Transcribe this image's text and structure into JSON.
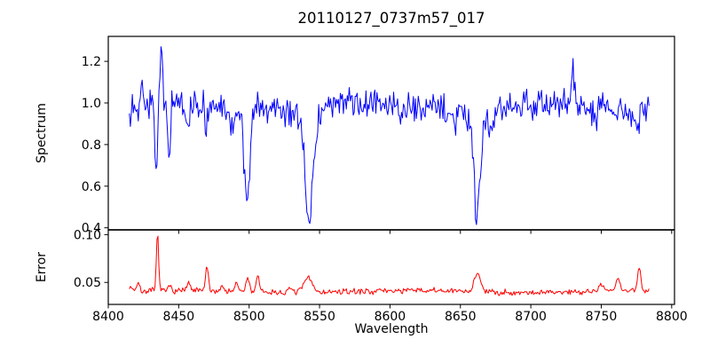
{
  "figure": {
    "background_color": "#ffffff",
    "frame_color": "#000000"
  },
  "chart_data": {
    "type": "line",
    "title": "20110127_0737m57_017",
    "xlabel": "Wavelength",
    "legend": "none",
    "grid": false,
    "xlim": [
      8400,
      8802
    ],
    "x_ticks": [
      8400,
      8450,
      8500,
      8550,
      8600,
      8650,
      8700,
      8750,
      8800
    ],
    "x_tick_labels": [
      "8400",
      "8450",
      "8500",
      "8550",
      "8600",
      "8650",
      "8700",
      "8750",
      "8800"
    ],
    "data_x_range": [
      8415,
      8784
    ],
    "panels": [
      {
        "name": "spectrum",
        "ylabel": "Spectrum",
        "ylim": [
          0.39,
          1.32
        ],
        "y_ticks": [
          1.2,
          1.0,
          0.8,
          0.6,
          0.4
        ],
        "y_tick_labels": [
          "1.2",
          "1.0",
          "0.8",
          "0.6",
          "0.4"
        ],
        "color": "#0000ff",
        "line_width": 1,
        "series_spec": {
          "description": "Noisy normalized stellar spectrum, continuum near 1.0, Ca II triplet absorption lines and a cosmic-ray spike",
          "x_start": 8415,
          "x_end": 8784,
          "x_step": 0.7,
          "baseline": 0.985,
          "noise": 0.07,
          "seed": 13,
          "clip": [
            0.4,
            1.3
          ],
          "wobble": {
            "amp": 0.012,
            "period": 130
          },
          "features": [
            {
              "center": 8424.0,
              "amp": 0.17,
              "sigma": 0.8
            },
            {
              "center": 8434.0,
              "amp": -0.3,
              "sigma": 1.1
            },
            {
              "center": 8437.5,
              "amp": 0.3,
              "sigma": 0.9
            },
            {
              "center": 8443.0,
              "amp": -0.22,
              "sigma": 1.1
            },
            {
              "center": 8456.0,
              "amp": -0.12,
              "sigma": 1.4
            },
            {
              "center": 8470.0,
              "amp": -0.1,
              "sigma": 1.4
            },
            {
              "center": 8488.0,
              "amp": -0.13,
              "sigma": 1.5
            },
            {
              "center": 8498.5,
              "amp": -0.44,
              "sigma": 2.0
            },
            {
              "center": 8542.5,
              "amp": -0.46,
              "sigma": 2.6
            },
            {
              "center": 8542.5,
              "amp": -0.09,
              "sigma": 6.5
            },
            {
              "center": 8608.0,
              "amp": -0.06,
              "sigma": 1.2
            },
            {
              "center": 8646.0,
              "amp": -0.08,
              "sigma": 1.3
            },
            {
              "center": 8662.0,
              "amp": -0.45,
              "sigma": 2.2
            },
            {
              "center": 8662.0,
              "amp": -0.07,
              "sigma": 5.5
            },
            {
              "center": 8672.0,
              "amp": -0.13,
              "sigma": 1.5
            },
            {
              "center": 8730.0,
              "amp": 0.18,
              "sigma": 0.9
            },
            {
              "center": 8745.0,
              "amp": -0.07,
              "sigma": 1.3
            },
            {
              "center": 8775.0,
              "amp": -0.1,
              "sigma": 1.6
            }
          ]
        }
      },
      {
        "name": "error",
        "ylabel": "Error",
        "ylim": [
          0.027,
          0.105
        ],
        "y_ticks": [
          0.1,
          0.05
        ],
        "y_tick_labels": [
          "0.10",
          "0.05"
        ],
        "color": "#ff0000",
        "line_width": 1,
        "series_spec": {
          "description": "Error spectrum, flat near 0.04 with spikes at absorption-line and cosmic-ray wavelengths",
          "x_start": 8415,
          "x_end": 8784,
          "x_step": 0.7,
          "baseline": 0.0405,
          "noise": 0.003,
          "seed": 7,
          "clip": [
            0.031,
            0.102
          ],
          "wobble": {
            "amp": 0.001,
            "period": 160
          },
          "features": [
            {
              "center": 8416,
              "amp": 0.005,
              "sigma": 1.5
            },
            {
              "center": 8421,
              "amp": 0.009,
              "sigma": 1.0
            },
            {
              "center": 8435,
              "amp": 0.06,
              "sigma": 0.8
            },
            {
              "center": 8444,
              "amp": 0.005,
              "sigma": 1.0
            },
            {
              "center": 8457,
              "amp": 0.007,
              "sigma": 1.2
            },
            {
              "center": 8470,
              "amp": 0.024,
              "sigma": 1.0
            },
            {
              "center": 8481,
              "amp": 0.005,
              "sigma": 1.2
            },
            {
              "center": 8491,
              "amp": 0.007,
              "sigma": 1.4
            },
            {
              "center": 8499,
              "amp": 0.014,
              "sigma": 1.2
            },
            {
              "center": 8506,
              "amp": 0.018,
              "sigma": 1.0
            },
            {
              "center": 8530,
              "amp": 0.004,
              "sigma": 1.5
            },
            {
              "center": 8542,
              "amp": 0.015,
              "sigma": 3.0
            },
            {
              "center": 8662,
              "amp": 0.02,
              "sigma": 2.2
            },
            {
              "center": 8750,
              "amp": 0.008,
              "sigma": 1.5
            },
            {
              "center": 8762,
              "amp": 0.012,
              "sigma": 1.5
            },
            {
              "center": 8777,
              "amp": 0.024,
              "sigma": 1.1
            }
          ]
        }
      }
    ]
  }
}
